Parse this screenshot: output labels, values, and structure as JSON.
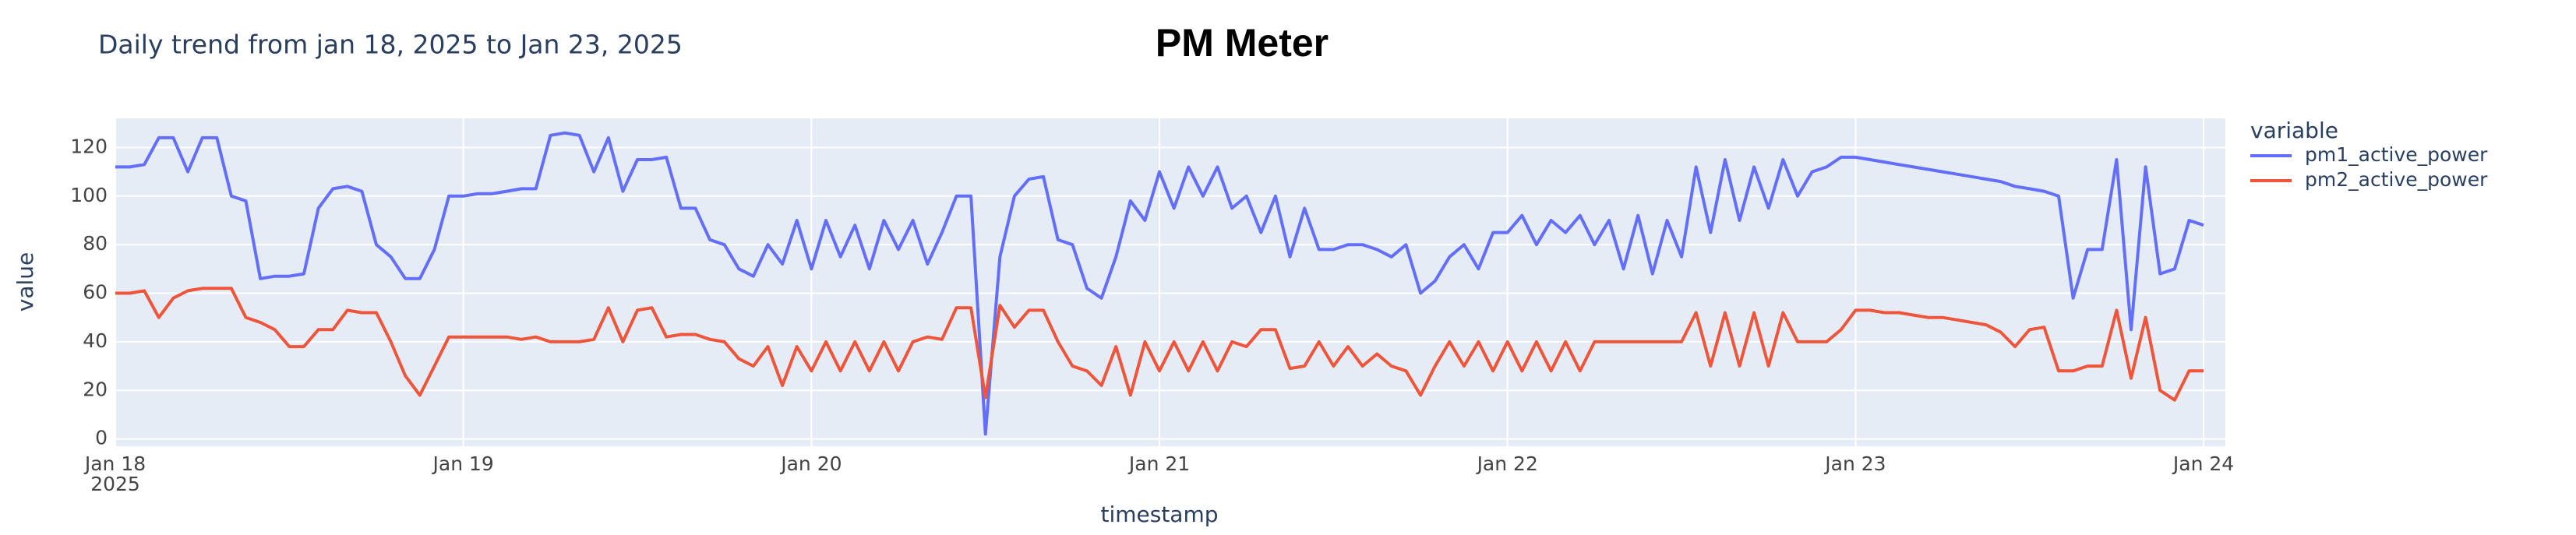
{
  "chart_data": {
    "type": "line",
    "title": "PM Meter",
    "subtitle": "Daily trend from jan 18, 2025 to Jan 23, 2025",
    "xlabel": "timestamp",
    "ylabel": "value",
    "legend_title": "variable",
    "legend": "right",
    "grid": true,
    "background": "#e5ecf6",
    "xlim": [
      "2025-01-18 00:00",
      "2025-01-24 01:30"
    ],
    "ylim": [
      -3,
      132
    ],
    "yticks": [
      0,
      20,
      40,
      60,
      80,
      100,
      120
    ],
    "xticks": [
      {
        "value": "2025-01-18 00:00",
        "label": "Jan 18\n2025"
      },
      {
        "value": "2025-01-19 00:00",
        "label": "Jan 19"
      },
      {
        "value": "2025-01-20 00:00",
        "label": "Jan 20"
      },
      {
        "value": "2025-01-21 00:00",
        "label": "Jan 21"
      },
      {
        "value": "2025-01-22 00:00",
        "label": "Jan 22"
      },
      {
        "value": "2025-01-23 00:00",
        "label": "Jan 23"
      },
      {
        "value": "2025-01-24 00:00",
        "label": "Jan 24"
      }
    ],
    "x": [
      "2025-01-18 00:00",
      "2025-01-18 01:00",
      "2025-01-18 02:00",
      "2025-01-18 03:00",
      "2025-01-18 04:00",
      "2025-01-18 05:00",
      "2025-01-18 06:00",
      "2025-01-18 07:00",
      "2025-01-18 08:00",
      "2025-01-18 09:00",
      "2025-01-18 10:00",
      "2025-01-18 11:00",
      "2025-01-18 12:00",
      "2025-01-18 13:00",
      "2025-01-18 14:00",
      "2025-01-18 15:00",
      "2025-01-18 16:00",
      "2025-01-18 17:00",
      "2025-01-18 18:00",
      "2025-01-18 19:00",
      "2025-01-18 20:00",
      "2025-01-18 21:00",
      "2025-01-18 22:00",
      "2025-01-18 23:00",
      "2025-01-19 00:00",
      "2025-01-19 01:00",
      "2025-01-19 02:00",
      "2025-01-19 03:00",
      "2025-01-19 04:00",
      "2025-01-19 05:00",
      "2025-01-19 06:00",
      "2025-01-19 07:00",
      "2025-01-19 08:00",
      "2025-01-19 09:00",
      "2025-01-19 10:00",
      "2025-01-19 11:00",
      "2025-01-19 12:00",
      "2025-01-19 13:00",
      "2025-01-19 14:00",
      "2025-01-19 15:00",
      "2025-01-19 16:00",
      "2025-01-19 17:00",
      "2025-01-19 18:00",
      "2025-01-19 19:00",
      "2025-01-19 20:00",
      "2025-01-19 21:00",
      "2025-01-19 22:00",
      "2025-01-19 23:00",
      "2025-01-20 00:00",
      "2025-01-20 01:00",
      "2025-01-20 02:00",
      "2025-01-20 03:00",
      "2025-01-20 04:00",
      "2025-01-20 05:00",
      "2025-01-20 06:00",
      "2025-01-20 07:00",
      "2025-01-20 08:00",
      "2025-01-20 09:00",
      "2025-01-20 10:00",
      "2025-01-20 11:00",
      "2025-01-20 12:00",
      "2025-01-20 13:00",
      "2025-01-20 14:00",
      "2025-01-20 15:00",
      "2025-01-20 16:00",
      "2025-01-20 17:00",
      "2025-01-20 18:00",
      "2025-01-20 19:00",
      "2025-01-20 20:00",
      "2025-01-20 21:00",
      "2025-01-20 22:00",
      "2025-01-20 23:00",
      "2025-01-21 00:00",
      "2025-01-21 01:00",
      "2025-01-21 02:00",
      "2025-01-21 03:00",
      "2025-01-21 04:00",
      "2025-01-21 05:00",
      "2025-01-21 06:00",
      "2025-01-21 07:00",
      "2025-01-21 08:00",
      "2025-01-21 09:00",
      "2025-01-21 10:00",
      "2025-01-21 11:00",
      "2025-01-21 12:00",
      "2025-01-21 13:00",
      "2025-01-21 14:00",
      "2025-01-21 15:00",
      "2025-01-21 16:00",
      "2025-01-21 17:00",
      "2025-01-21 18:00",
      "2025-01-21 19:00",
      "2025-01-21 20:00",
      "2025-01-21 21:00",
      "2025-01-21 22:00",
      "2025-01-21 23:00",
      "2025-01-22 00:00",
      "2025-01-22 01:00",
      "2025-01-22 02:00",
      "2025-01-22 03:00",
      "2025-01-22 04:00",
      "2025-01-22 05:00",
      "2025-01-22 06:00",
      "2025-01-22 07:00",
      "2025-01-22 08:00",
      "2025-01-22 09:00",
      "2025-01-22 10:00",
      "2025-01-22 11:00",
      "2025-01-22 12:00",
      "2025-01-22 13:00",
      "2025-01-22 14:00",
      "2025-01-22 15:00",
      "2025-01-22 16:00",
      "2025-01-22 17:00",
      "2025-01-22 18:00",
      "2025-01-22 19:00",
      "2025-01-22 20:00",
      "2025-01-22 21:00",
      "2025-01-22 22:00",
      "2025-01-22 23:00",
      "2025-01-23 00:00",
      "2025-01-23 01:00",
      "2025-01-23 02:00",
      "2025-01-23 03:00",
      "2025-01-23 04:00",
      "2025-01-23 05:00",
      "2025-01-23 06:00",
      "2025-01-23 07:00",
      "2025-01-23 08:00",
      "2025-01-23 09:00",
      "2025-01-23 10:00",
      "2025-01-23 11:00",
      "2025-01-23 12:00",
      "2025-01-23 13:00",
      "2025-01-23 14:00",
      "2025-01-23 15:00",
      "2025-01-23 16:00",
      "2025-01-23 17:00",
      "2025-01-23 18:00",
      "2025-01-23 19:00",
      "2025-01-23 20:00",
      "2025-01-23 21:00",
      "2025-01-23 22:00",
      "2025-01-23 23:00",
      "2025-01-24 00:00"
    ],
    "series": [
      {
        "name": "pm1_active_power",
        "color": "#636efa",
        "values": [
          112,
          112,
          113,
          124,
          124,
          110,
          124,
          124,
          100,
          98,
          66,
          67,
          67,
          68,
          95,
          103,
          104,
          102,
          80,
          75,
          66,
          66,
          78,
          100,
          100,
          101,
          101,
          102,
          103,
          103,
          125,
          126,
          125,
          110,
          124,
          102,
          115,
          115,
          116,
          95,
          95,
          82,
          80,
          70,
          67,
          80,
          72,
          90,
          70,
          90,
          75,
          88,
          70,
          90,
          78,
          90,
          72,
          85,
          100,
          100,
          2,
          75,
          100,
          107,
          108,
          82,
          80,
          62,
          58,
          75,
          98,
          90,
          110,
          95,
          112,
          100,
          112,
          95,
          100,
          85,
          100,
          75,
          95,
          78,
          78,
          80,
          80,
          78,
          75,
          80,
          60,
          65,
          75,
          80,
          70,
          85,
          85,
          92,
          80,
          90,
          85,
          92,
          80,
          90,
          70,
          92,
          68,
          90,
          75,
          112,
          85,
          115,
          90,
          112,
          95,
          115,
          100,
          110,
          112,
          116,
          116,
          115,
          114,
          113,
          112,
          111,
          110,
          109,
          108,
          107,
          106,
          104,
          103,
          102,
          100,
          58,
          78,
          78,
          115,
          45,
          112,
          68,
          70,
          90,
          88
        ]
      },
      {
        "name": "pm2_active_power",
        "color": "#ef553b",
        "values": [
          60,
          60,
          61,
          50,
          58,
          61,
          62,
          62,
          62,
          50,
          48,
          45,
          38,
          38,
          45,
          45,
          53,
          52,
          52,
          40,
          26,
          18,
          30,
          42,
          42,
          42,
          42,
          42,
          41,
          42,
          40,
          40,
          40,
          41,
          54,
          40,
          53,
          54,
          42,
          43,
          43,
          41,
          40,
          33,
          30,
          38,
          22,
          38,
          28,
          40,
          28,
          40,
          28,
          40,
          28,
          40,
          42,
          41,
          54,
          54,
          17,
          55,
          46,
          53,
          53,
          40,
          30,
          28,
          22,
          38,
          18,
          40,
          28,
          40,
          28,
          40,
          28,
          40,
          38,
          45,
          45,
          29,
          30,
          40,
          30,
          38,
          30,
          35,
          30,
          28,
          18,
          30,
          40,
          30,
          40,
          28,
          40,
          28,
          40,
          28,
          40,
          28,
          40,
          40,
          40,
          40,
          40,
          40,
          40,
          52,
          30,
          52,
          30,
          52,
          30,
          52,
          40,
          40,
          40,
          45,
          53,
          53,
          52,
          52,
          51,
          50,
          50,
          49,
          48,
          47,
          44,
          38,
          45,
          46,
          28,
          28,
          30,
          30,
          53,
          25,
          50,
          20,
          16,
          28,
          28
        ]
      }
    ]
  }
}
